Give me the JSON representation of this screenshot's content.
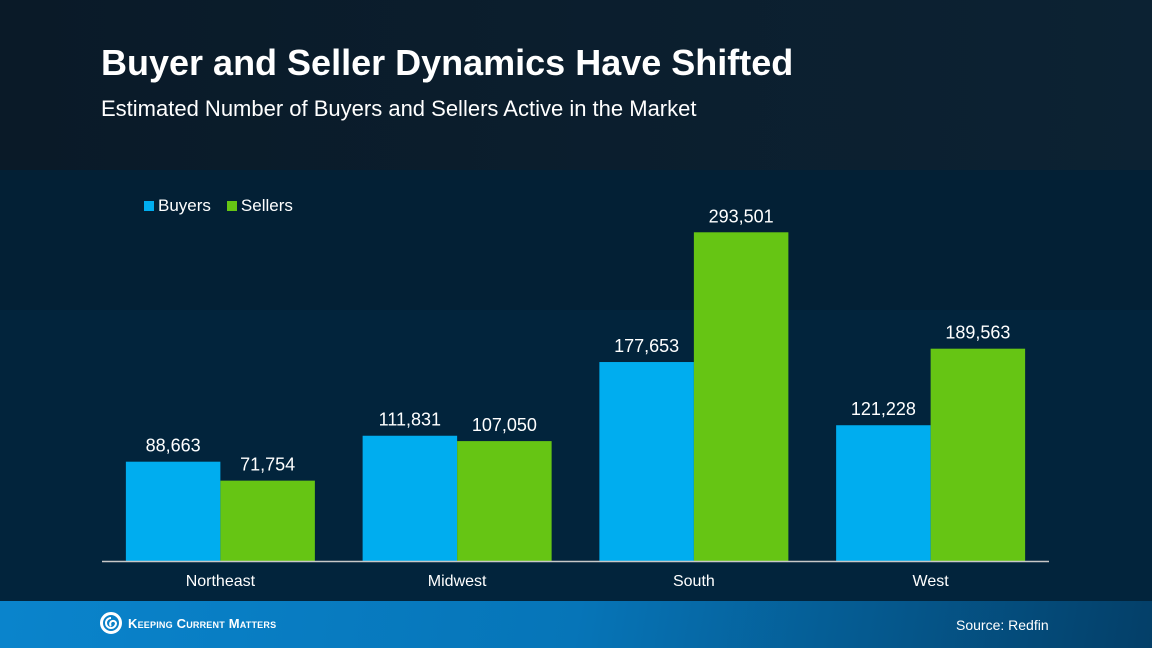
{
  "footer": {
    "logo_text": "Keeping Current Matters",
    "source": "Source: Redfin"
  },
  "colors": {
    "buyers": "#00adef",
    "sellers": "#66c514",
    "axis": "#c8c8c8"
  },
  "chart_data": {
    "type": "bar",
    "title": "Buyer and Seller Dynamics Have Shifted",
    "subtitle": "Estimated Number of Buyers and Sellers Active in the Market",
    "categories": [
      "Northeast",
      "Midwest",
      "South",
      "West"
    ],
    "series": [
      {
        "name": "Buyers",
        "values": [
          88663,
          111831,
          177653,
          121228
        ],
        "labels": [
          "88,663",
          "111,831",
          "177,653",
          "121,228"
        ]
      },
      {
        "name": "Sellers",
        "values": [
          71754,
          107050,
          293501,
          189563
        ],
        "labels": [
          "71,754",
          "107,050",
          "293,501",
          "189,563"
        ]
      }
    ],
    "ylim": [
      0,
      300000
    ],
    "grid": false,
    "legend": "top-left",
    "data_labels": true
  }
}
